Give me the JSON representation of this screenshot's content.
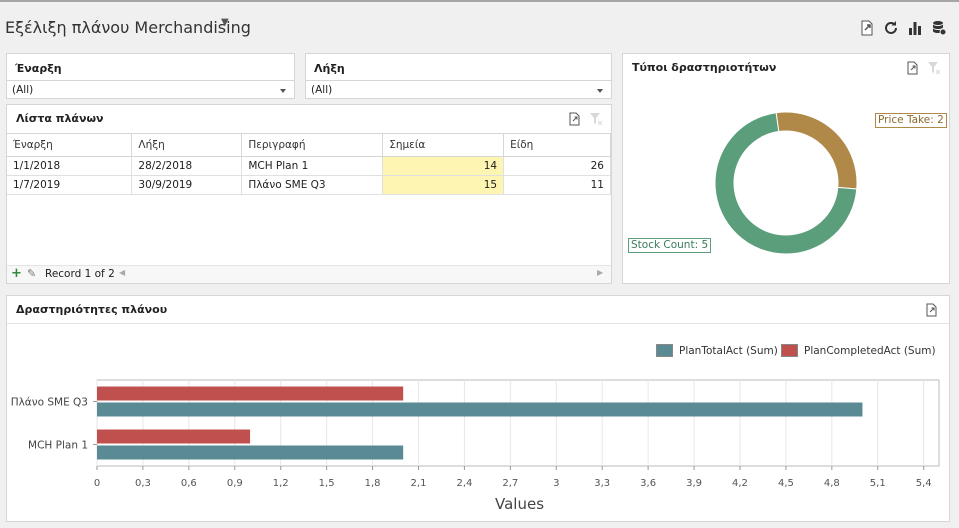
{
  "dashboard": {
    "title": "Εξέλιξη πλάνου Merchandising"
  },
  "colors": {
    "teal": "#5a8a94",
    "red": "#c0504d",
    "green": "#5a9e7c",
    "gold": "#b08848",
    "highlight": "#fff5b3"
  },
  "filters": {
    "start": {
      "label": "Έναρξη",
      "value": "(All)"
    },
    "end": {
      "label": "Λήξη",
      "value": "(All)"
    }
  },
  "plans": {
    "title": "Λίστα πλάνων",
    "columns": [
      "Έναρξη",
      "Λήξη",
      "Περιγραφή",
      "Σημεία",
      "Είδη"
    ],
    "rows": [
      [
        "1/1/2018",
        "28/2/2018",
        "MCH Plan 1",
        "14",
        "26"
      ],
      [
        "1/7/2019",
        "30/9/2019",
        "Πλάνο SME Q3",
        "15",
        "11"
      ]
    ],
    "record_text": "Record 1 of 2"
  },
  "activity_types": {
    "title": "Τύποι δραστηριοτήτων",
    "chart_data": {
      "type": "pie",
      "slices": [
        {
          "label": "Price Take",
          "value": 2,
          "display": "Price Take: 2"
        },
        {
          "label": "Stock Count",
          "value": 5,
          "display": "Stock Count: 5"
        }
      ]
    }
  },
  "activities": {
    "title": "Δραστηριότητες πλάνου",
    "chart_data": {
      "type": "bar",
      "orientation": "horizontal",
      "categories": [
        "Πλάνο SME Q3",
        "MCH Plan 1"
      ],
      "series": [
        {
          "name": "PlanCompletedAct (Sum)",
          "values": [
            2,
            1
          ]
        },
        {
          "name": "PlanTotalAct (Sum)",
          "values": [
            5,
            2
          ]
        }
      ],
      "xlabel": "Values",
      "xlim": [
        0,
        5.5
      ],
      "ticks": [
        "0",
        "0,3",
        "0,6",
        "0,9",
        "1,2",
        "1,5",
        "1,8",
        "2,1",
        "2,4",
        "2,7",
        "3",
        "3,3",
        "3,6",
        "3,9",
        "4,2",
        "4,5",
        "4,8",
        "5,1",
        "5,4"
      ],
      "grid": true,
      "legend": "top-right"
    }
  }
}
